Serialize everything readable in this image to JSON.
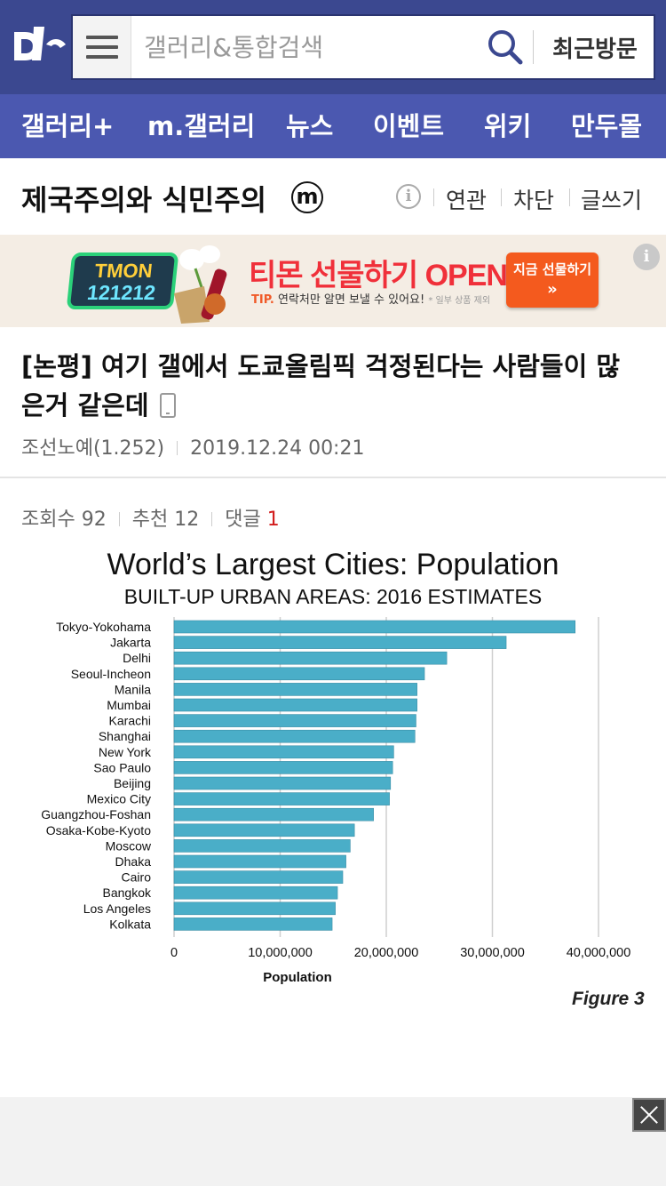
{
  "header": {
    "logo_icon": "dc-logo-icon",
    "search_placeholder": "갤러리&통합검색",
    "recent_label": "최근방문"
  },
  "nav": {
    "items": [
      "갤러리+",
      "m.갤러리",
      "뉴스",
      "이벤트",
      "위키",
      "만두몰"
    ]
  },
  "gallery": {
    "title": "제국주의와 식민주의",
    "badge": "m",
    "links": [
      "연관",
      "차단",
      "글쓰기"
    ]
  },
  "ad": {
    "brand_line1": "TMON",
    "brand_line2": "121212",
    "headline": "티몬 선물하기 OPEN",
    "tip_prefix": "TIP.",
    "tip_text": "연락처만 알면 보낼 수 있어요!",
    "tip_note": "* 일부 상품 제외",
    "cta": "지금 선물하기",
    "cta_arrow": "»",
    "info": "i"
  },
  "post": {
    "title": "[논평] 여기 갤에서 도쿄올림픽 걱정된다는 사람들이 많은거 같은데",
    "author": "조선노예(1.252)",
    "date": "2019.12.24 00:21",
    "views_label": "조회수",
    "views": "92",
    "recommend_label": "추천",
    "recommend": "12",
    "comments_label": "댓글",
    "comments": "1"
  },
  "chart_data": {
    "type": "bar",
    "orientation": "horizontal",
    "title": "World’s Largest Cities: Population",
    "subtitle": "BUILT-UP URBAN AREAS: 2016 ESTIMATES",
    "xlabel": "Population",
    "ylabel": "",
    "figure_label": "Figure 3",
    "categories": [
      "Tokyo-Yokohama",
      "Jakarta",
      "Delhi",
      "Seoul-Incheon",
      "Manila",
      "Mumbai",
      "Karachi",
      "Shanghai",
      "New York",
      "Sao Paulo",
      "Beijing",
      "Mexico City",
      "Guangzhou-Foshan",
      "Osaka-Kobe-Kyoto",
      "Moscow",
      "Dhaka",
      "Cairo",
      "Bangkok",
      "Los Angeles",
      "Kolkata"
    ],
    "values": [
      37800000,
      31300000,
      25700000,
      23600000,
      22900000,
      22900000,
      22800000,
      22700000,
      20700000,
      20600000,
      20400000,
      20300000,
      18800000,
      17000000,
      16600000,
      16200000,
      15900000,
      15400000,
      15200000,
      14900000
    ],
    "xlim": [
      0,
      40000000
    ],
    "xticks": [
      "0",
      "10,000,000",
      "20,000,000",
      "30,000,000",
      "40,000,000"
    ],
    "bar_color": "#4aaec8",
    "grid": true
  },
  "colors": {
    "header_bg": "#3b4890",
    "nav_bg": "#4b58b0",
    "comment_count": "#d21c1c"
  },
  "bottom": {
    "close_icon": "close-icon"
  }
}
